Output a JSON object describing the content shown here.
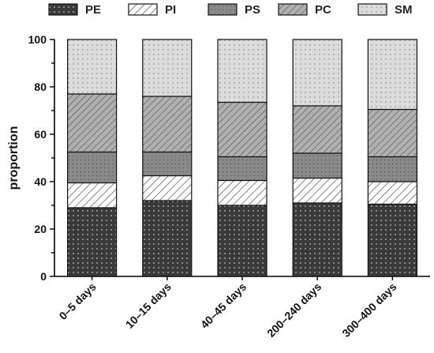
{
  "chart_data": {
    "type": "bar",
    "stacked": true,
    "categories": [
      "0–5 days",
      "10–15 days",
      "40–45 days",
      "200–240 days",
      "300–400 days"
    ],
    "series": [
      {
        "name": "PE",
        "values": [
          29,
          32,
          30,
          31,
          30.5
        ],
        "pattern": "dots-on-dark"
      },
      {
        "name": "PI",
        "values": [
          10.5,
          10.5,
          10.5,
          10.5,
          9.5
        ],
        "pattern": "diagonal-light"
      },
      {
        "name": "PS",
        "values": [
          13,
          10,
          10,
          10.5,
          10.5
        ],
        "pattern": "dots-on-medium"
      },
      {
        "name": "PC",
        "values": [
          24.5,
          23.5,
          23,
          20,
          20
        ],
        "pattern": "diagonal-medium"
      },
      {
        "name": "SM",
        "values": [
          23,
          24,
          26.5,
          28,
          29.5
        ],
        "pattern": "dots-on-light"
      }
    ],
    "xlabel": "",
    "ylabel": "proportion",
    "ylim": [
      0,
      100
    ],
    "yticks": [
      0,
      20,
      40,
      60,
      80,
      100
    ],
    "grid": false,
    "legend_position": "top"
  }
}
